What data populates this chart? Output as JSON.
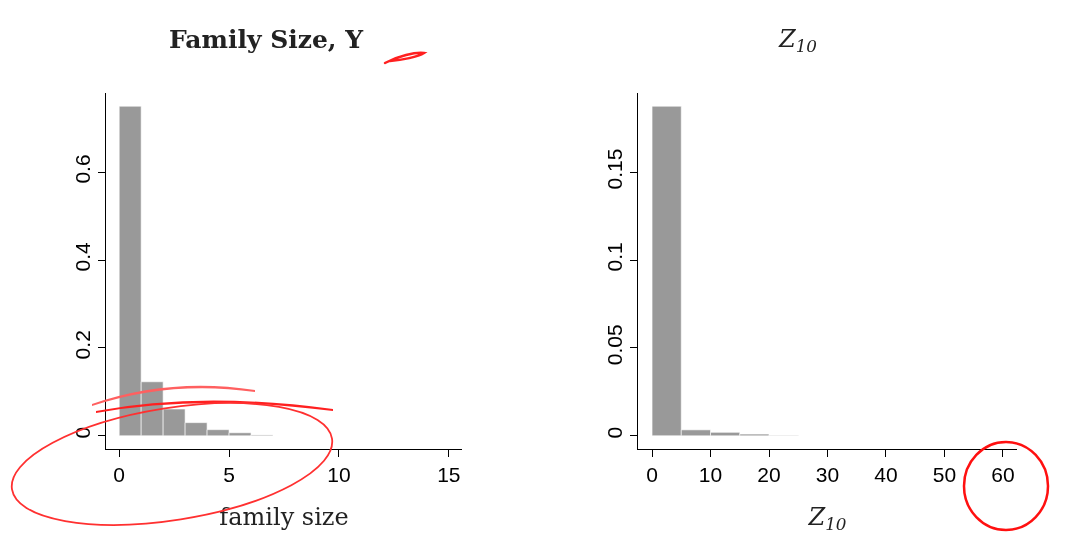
{
  "chart_data": [
    {
      "type": "histogram",
      "title": "Family Size, Y",
      "xlabel": "family size",
      "color": "#999999",
      "bins": [
        0,
        1,
        2,
        3,
        4,
        5,
        6,
        7
      ],
      "values": [
        0.75,
        0.123,
        0.061,
        0.03,
        0.014,
        0.007,
        0.002
      ],
      "xlim": [
        -0.6,
        15.6
      ],
      "xticks": [
        0,
        5,
        10,
        15
      ],
      "ylim": [
        -0.03,
        0.78
      ],
      "yticks": [
        0,
        0.2,
        0.4,
        0.6
      ]
    },
    {
      "type": "histogram",
      "title": "Z$_{10}$",
      "xlabel": "Z$_{10}$",
      "color": "#999999",
      "bins": [
        0,
        5,
        10,
        15,
        20,
        25
      ],
      "values": [
        0.1875,
        0.0034,
        0.002,
        0.001,
        0.0003
      ],
      "xlim": [
        -2.4,
        62.4
      ],
      "xticks": [
        0,
        10,
        20,
        30,
        40,
        50,
        60
      ],
      "ylim": [
        -0.0075,
        0.195
      ],
      "yticks": [
        0,
        0.05,
        0.1,
        0.15
      ]
    }
  ]
}
